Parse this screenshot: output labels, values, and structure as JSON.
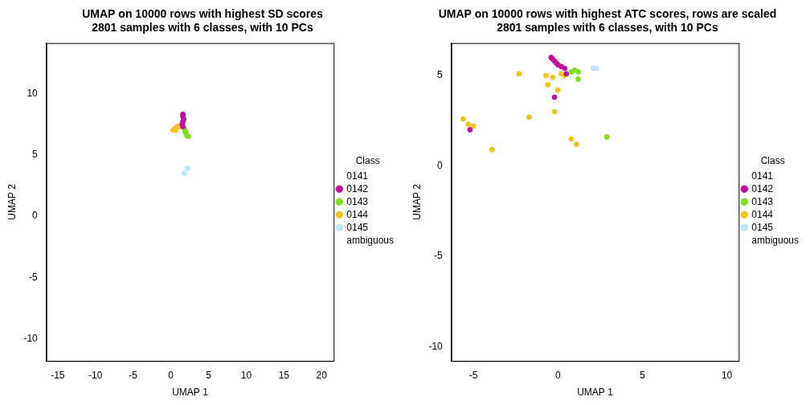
{
  "chart_data": [
    {
      "type": "scatter",
      "title": [
        "UMAP on 10000 rows with highest SD scores",
        "2801 samples with 6 classes, with 10 PCs"
      ],
      "x_label": "UMAP 1",
      "y_label": "UMAP 2",
      "legend_title": "Class",
      "legend": "right",
      "grid": false,
      "xlim": [
        -16.5,
        21.6
      ],
      "xticks": [
        -15,
        -10,
        -5,
        0,
        5,
        10,
        15,
        20
      ],
      "ylim": [
        -11.8,
        14.1
      ],
      "yticks": [
        -10,
        -5,
        0,
        5,
        10
      ],
      "series": [
        {
          "name": "0141",
          "color": "#ffffff",
          "values": []
        },
        {
          "name": "0142",
          "color": "#c0109b",
          "values": [
            [
              1.6,
              8.3
            ],
            [
              1.6,
              8.1
            ],
            [
              1.7,
              7.9
            ],
            [
              1.6,
              7.7
            ],
            [
              1.5,
              7.5
            ],
            [
              1.6,
              7.3
            ]
          ]
        },
        {
          "name": "0143",
          "color": "#7fe01a",
          "values": [
            [
              1.8,
              7.1
            ],
            [
              1.9,
              6.9
            ],
            [
              2.0,
              6.8
            ],
            [
              2.1,
              6.6
            ],
            [
              2.3,
              6.5
            ]
          ]
        },
        {
          "name": "0144",
          "color": "#f0c419",
          "values": [
            [
              0.3,
              7.0
            ],
            [
              0.5,
              7.1
            ],
            [
              0.7,
              7.2
            ],
            [
              0.9,
              7.3
            ],
            [
              1.1,
              7.3
            ],
            [
              1.3,
              7.4
            ],
            [
              0.6,
              7.0
            ]
          ]
        },
        {
          "name": "0145",
          "color": "#bde4f5",
          "values": [
            [
              1.8,
              3.5
            ],
            [
              2.2,
              3.9
            ]
          ]
        },
        {
          "name": "ambiguous",
          "color": "#ffffff",
          "values": []
        }
      ]
    },
    {
      "type": "scatter",
      "title": [
        "UMAP on 10000 rows with highest ATC scores, rows are scaled",
        "2801 samples with 6 classes, with 10 PCs"
      ],
      "x_label": "UMAP 1",
      "y_label": "UMAP 2",
      "legend_title": "Class",
      "legend": "right",
      "grid": false,
      "xlim": [
        -6.3,
        10.7
      ],
      "xticks": [
        -5,
        0,
        5,
        10
      ],
      "ylim": [
        -10.8,
        6.8
      ],
      "yticks": [
        -10,
        -5,
        0,
        5
      ],
      "series": [
        {
          "name": "0141",
          "color": "#ffffff",
          "values": []
        },
        {
          "name": "0142",
          "color": "#c0109b",
          "values": [
            [
              -0.4,
              6.0
            ],
            [
              -0.3,
              5.9
            ],
            [
              -0.2,
              5.8
            ],
            [
              -0.1,
              5.7
            ],
            [
              0.0,
              5.6
            ],
            [
              0.2,
              5.5
            ],
            [
              0.4,
              5.4
            ],
            [
              0.5,
              5.1
            ],
            [
              -0.2,
              3.8
            ],
            [
              -5.2,
              2.0
            ]
          ]
        },
        {
          "name": "0143",
          "color": "#7fe01a",
          "values": [
            [
              0.8,
              5.2
            ],
            [
              1.0,
              5.3
            ],
            [
              1.2,
              5.2
            ],
            [
              1.2,
              4.8
            ],
            [
              2.9,
              1.6
            ]
          ]
        },
        {
          "name": "0144",
          "color": "#f0c419",
          "values": [
            [
              0.2,
              5.1
            ],
            [
              0.4,
              5.0
            ],
            [
              -0.7,
              5.0
            ],
            [
              -0.3,
              4.9
            ],
            [
              -0.6,
              4.5
            ],
            [
              0.0,
              4.2
            ],
            [
              -2.3,
              5.1
            ],
            [
              -5.6,
              2.6
            ],
            [
              -5.3,
              2.3
            ],
            [
              -5.0,
              2.2
            ],
            [
              -3.9,
              0.9
            ],
            [
              -1.7,
              2.7
            ],
            [
              -0.2,
              3.0
            ],
            [
              0.8,
              1.5
            ],
            [
              1.1,
              1.2
            ]
          ]
        },
        {
          "name": "0145",
          "color": "#bde4f5",
          "values": [
            [
              2.1,
              5.4
            ],
            [
              2.3,
              5.4
            ]
          ]
        },
        {
          "name": "ambiguous",
          "color": "#ffffff",
          "values": []
        }
      ]
    }
  ]
}
